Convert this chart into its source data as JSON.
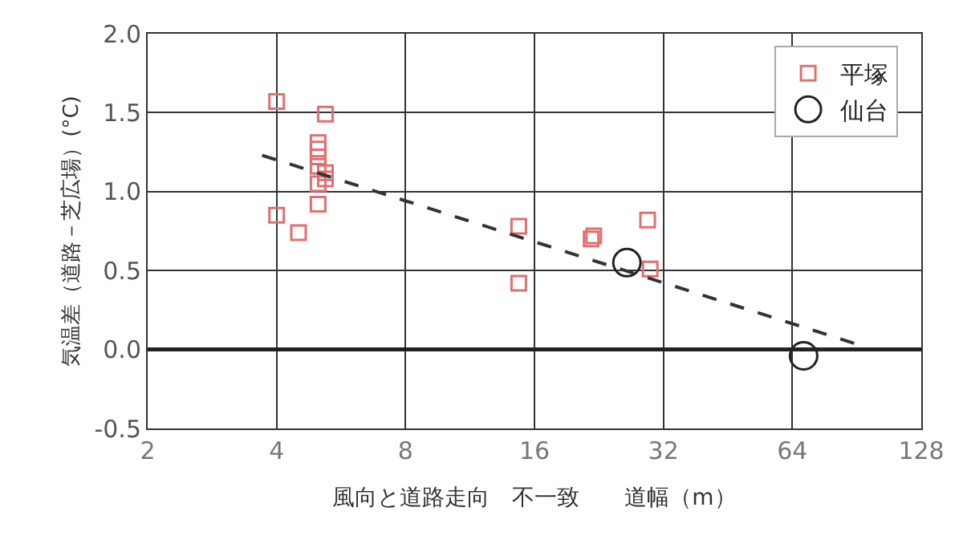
{
  "chart_data": {
    "type": "scatter",
    "xlabel": "風向と道路走向　不一致　　道幅（m）",
    "ylabel": "気温差（道路－芝広場）(°C)",
    "log": "x",
    "xlim": [
      2,
      128
    ],
    "xticks": [
      2,
      4,
      8,
      16,
      32,
      64,
      128
    ],
    "ylim": [
      -0.5,
      2.0
    ],
    "yticks": [
      {
        "value": -0.5,
        "label": "-0.5"
      },
      {
        "value": 0,
        "label": "0.0"
      },
      {
        "value": 0.5,
        "label": "0.5"
      },
      {
        "value": 1,
        "label": "1.0"
      },
      {
        "value": 1.5,
        "label": "1.5"
      },
      {
        "value": 2,
        "label": "2.0"
      }
    ],
    "grid": true,
    "legend": "top right",
    "series": [
      {
        "name": "平塚",
        "color": "#e07070",
        "marker": "square",
        "x": [
          4,
          5.2,
          5,
          5,
          5,
          5,
          5.2,
          5.2,
          5,
          5,
          4,
          4.5,
          14.7,
          14.7,
          21.7,
          22,
          29.4,
          29.8
        ],
        "values": [
          1.57,
          1.49,
          1.31,
          1.27,
          1.22,
          1.16,
          1.12,
          1.08,
          1.05,
          0.92,
          0.85,
          0.74,
          0.78,
          0.42,
          0.7,
          0.72,
          0.82,
          0.51
        ]
      },
      {
        "name": "仙台",
        "color": "#222222",
        "marker": "circle",
        "x": [
          26.3,
          68
        ],
        "values": [
          0.55,
          -0.04
        ]
      },
      {
        "type": "line",
        "color": "#333333",
        "line_style": "dashed",
        "marker": "none",
        "x": [
          3.7,
          94
        ],
        "values": [
          1.23,
          0.02
        ]
      }
    ],
    "ref_lines": [
      {
        "axis": "y",
        "value": 0,
        "color": "#222222"
      }
    ]
  }
}
